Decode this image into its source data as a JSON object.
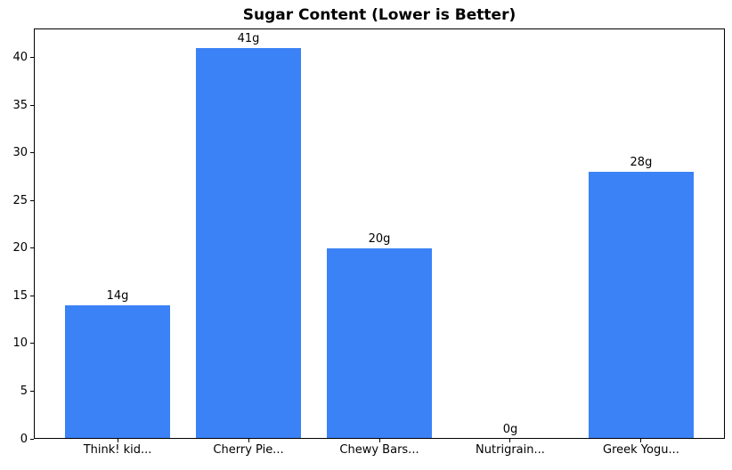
{
  "chart_data": {
    "type": "bar",
    "title": "Sugar Content (Lower is Better)",
    "categories": [
      "Think! kid...",
      "Cherry Pie...",
      "Chewy Bars...",
      "Nutrigrain...",
      "Greek Yogu..."
    ],
    "values": [
      14,
      41,
      20,
      0,
      28
    ],
    "value_labels": [
      "14g",
      "41g",
      "20g",
      "0g",
      "28g"
    ],
    "yticks": [
      0,
      5,
      10,
      15,
      20,
      25,
      30,
      35,
      40
    ],
    "ylim": [
      0,
      43.05
    ],
    "xlabel": "",
    "ylabel": "",
    "grid": false,
    "legend": null,
    "bar_color": "#3b82f6",
    "axis_color": "#000000",
    "text_color": "#000000",
    "background_color": "#ffffff"
  }
}
